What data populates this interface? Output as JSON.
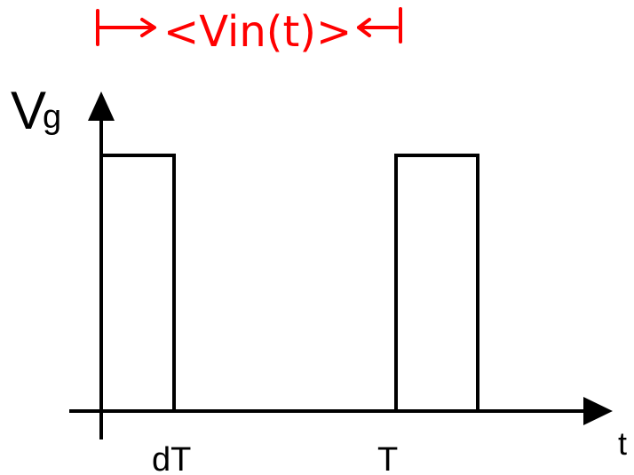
{
  "diagram": {
    "y_axis_label": {
      "main": "V",
      "subscript": "g"
    },
    "x_axis_label": "t",
    "tick_labels": {
      "dT": "dT",
      "T": "T"
    },
    "annotation": {
      "text": "<Vin(t)>",
      "color": "#ff0000"
    },
    "waveform": {
      "type": "pulse-train",
      "pulses": [
        {
          "start": "0",
          "end": "dT"
        },
        {
          "start": "T",
          "end": "T + dT"
        }
      ]
    },
    "colors": {
      "axis": "#000000",
      "waveform": "#000000",
      "annotation": "#ff0000",
      "background": "#ffffff"
    }
  }
}
